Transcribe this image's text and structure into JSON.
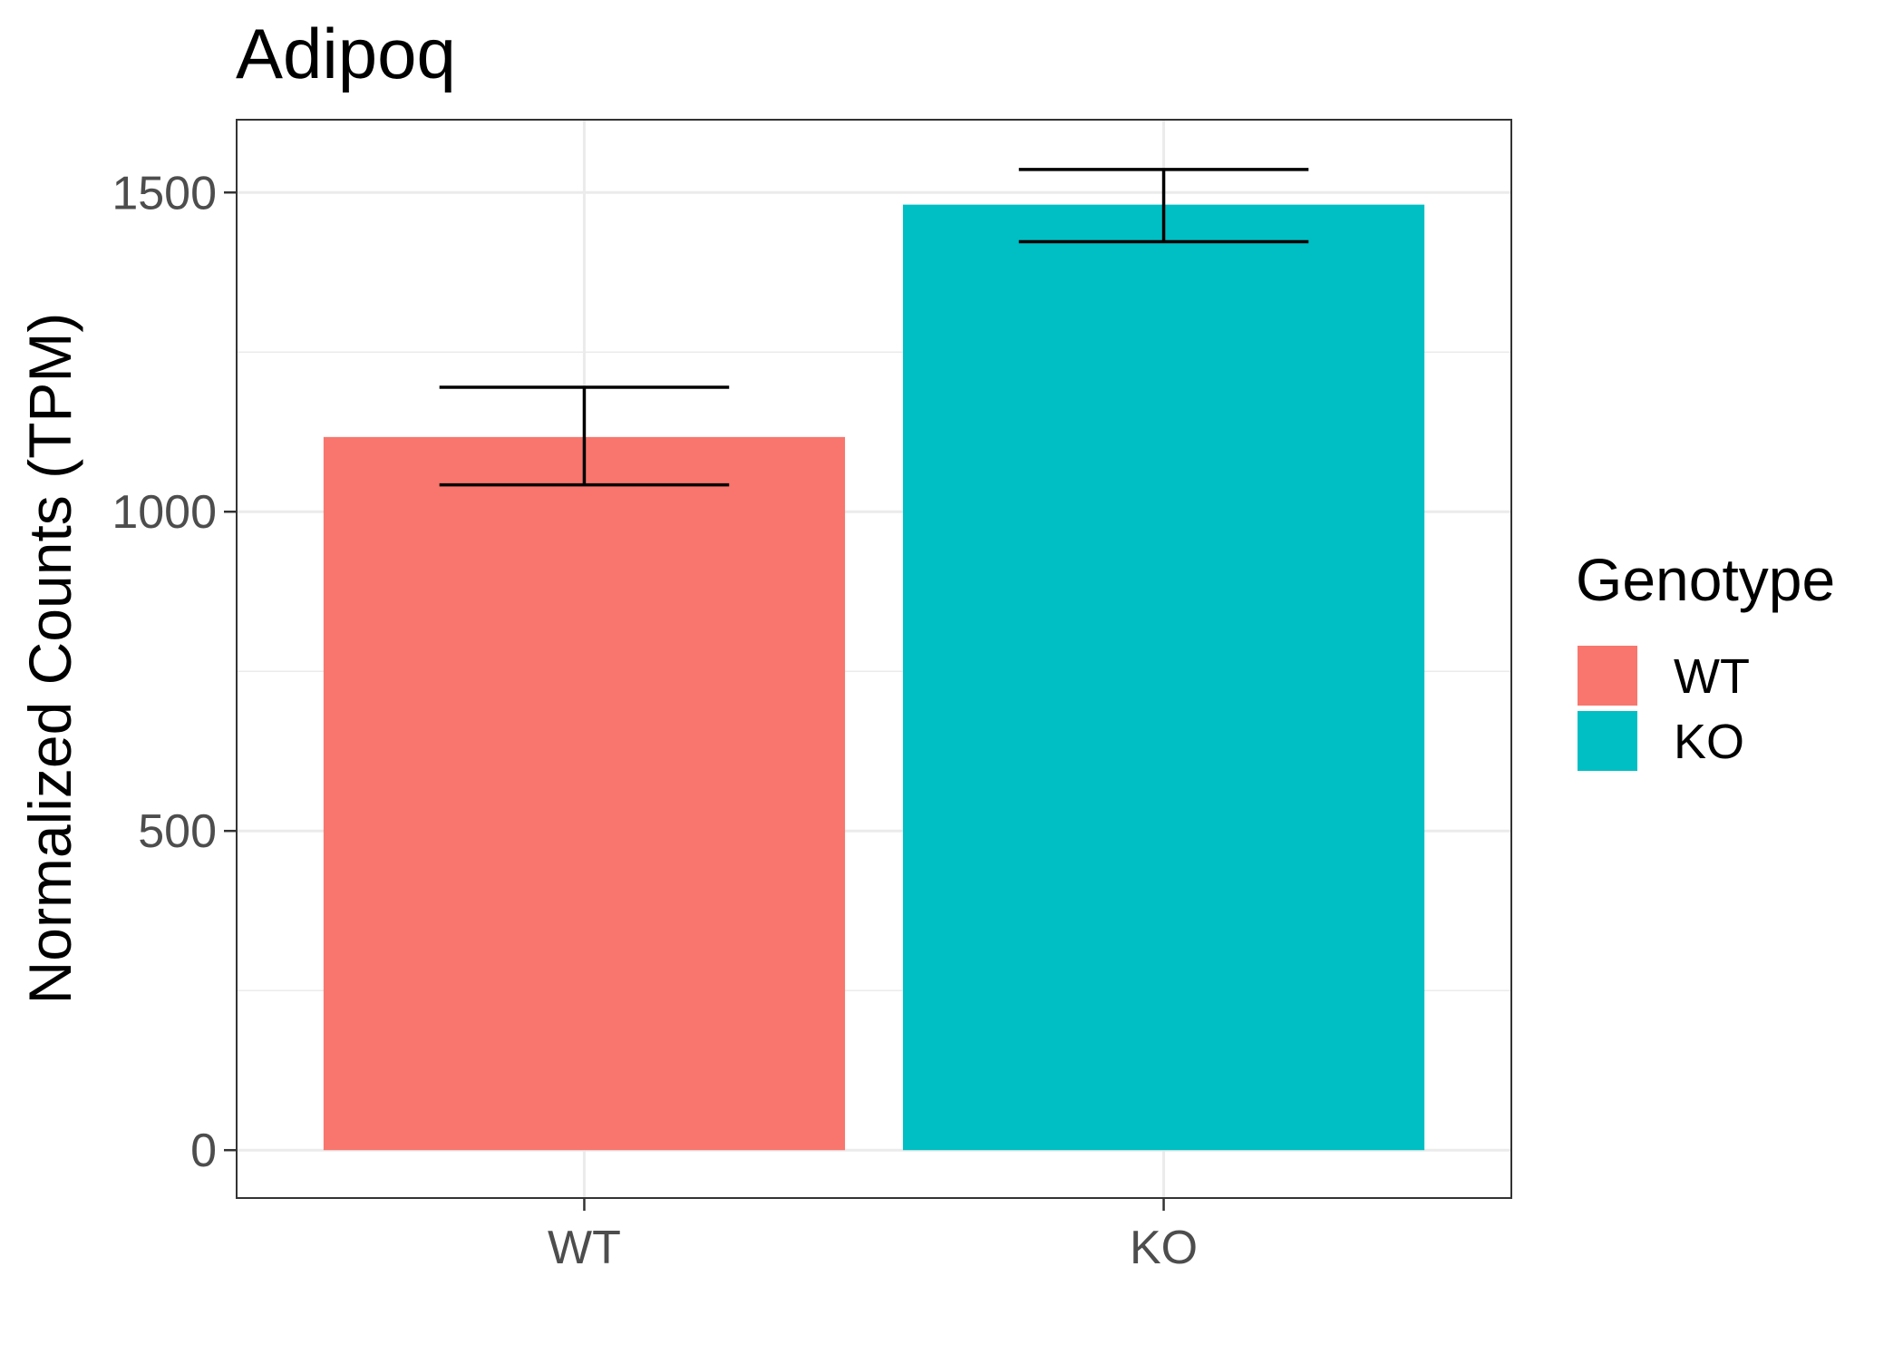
{
  "chart_data": {
    "type": "bar",
    "title": "Adipoq",
    "xlabel": "",
    "ylabel": "Normalized Counts (TPM)",
    "categories": [
      "WT",
      "KO"
    ],
    "values": [
      1117,
      1481
    ],
    "error_bars": [
      {
        "category": "WT",
        "low": 1042,
        "high": 1195
      },
      {
        "category": "KO",
        "low": 1423,
        "high": 1536
      }
    ],
    "ylim": [
      -75,
      1614
    ],
    "y_ticks": [
      0,
      500,
      1000,
      1500
    ],
    "grid": true,
    "legend": {
      "title": "Genotype",
      "placement": "right",
      "entries": [
        {
          "label": "WT",
          "color": "#F8766D"
        },
        {
          "label": "KO",
          "color": "#00BFC4"
        }
      ]
    },
    "colors": {
      "WT": "#F8766D",
      "KO": "#00BFC4"
    }
  }
}
